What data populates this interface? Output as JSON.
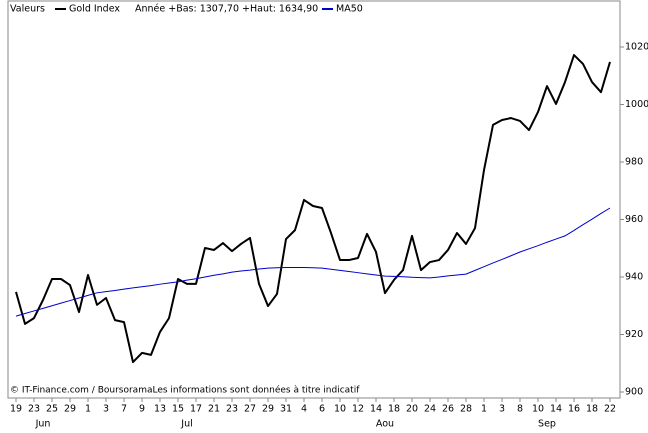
{
  "chart_data": {
    "type": "line",
    "legend_heading": "Valeurs",
    "subtitle": "Année +Bas: 1307,70 +Haut: 1634,90",
    "annotation": "© IT-Finance.com / BoursoramaLes informations sont données à titre indicatif",
    "categories": [
      "19",
      null,
      "23",
      null,
      "25",
      null,
      "29",
      null,
      "1",
      null,
      "3",
      null,
      "7",
      null,
      "9",
      null,
      "13",
      null,
      "15",
      null,
      "17",
      null,
      "21",
      null,
      "23",
      null,
      "27",
      null,
      "29",
      null,
      "31",
      null,
      "4",
      null,
      "6",
      null,
      "10",
      null,
      "12",
      null,
      "14",
      null,
      "18",
      null,
      "20",
      null,
      "24",
      null,
      "26",
      null,
      "28",
      null,
      "1",
      null,
      "3",
      null,
      "8",
      null,
      "10",
      null,
      "14",
      null,
      "16",
      null,
      "18",
      null,
      "22"
    ],
    "months": [
      "Jun",
      "Jul",
      "Aou",
      "Sep"
    ],
    "series": [
      {
        "name": "Gold Index",
        "color": "#000000",
        "width": 2,
        "values": [
          934.8,
          923.7,
          925.7,
          932.0,
          939.3,
          939.3,
          937.2,
          927.8,
          940.7,
          930.3,
          932.7,
          925.0,
          924.3,
          910.4,
          913.6,
          912.9,
          920.9,
          925.7,
          939.3,
          937.6,
          937.6,
          950.1,
          949.4,
          951.8,
          949.0,
          951.5,
          953.6,
          937.6,
          929.9,
          934.1,
          953.2,
          956.3,
          966.8,
          964.7,
          964.0,
          955.3,
          945.9,
          945.9,
          946.6,
          955.0,
          948.7,
          934.4,
          939.0,
          942.4,
          954.3,
          942.4,
          945.2,
          945.9,
          949.4,
          955.3,
          951.5,
          957.0,
          977.2,
          992.9,
          994.6,
          995.3,
          994.3,
          991.1,
          997.4,
          1006.4,
          1000.2,
          1007.8,
          1017.2,
          1014.1,
          1007.8,
          1004.3,
          1014.8
        ]
      },
      {
        "name": "MA50",
        "color": "#0000cc",
        "width": 1,
        "values": [
          926.4,
          927.3,
          928.2,
          929.1,
          930.0,
          930.9,
          931.8,
          932.7,
          933.6,
          934.5,
          934.9,
          935.3,
          935.8,
          936.2,
          936.6,
          937.0,
          937.5,
          937.9,
          938.3,
          938.9,
          939.4,
          940.0,
          940.6,
          941.1,
          941.7,
          942.1,
          942.4,
          942.8,
          943.1,
          943.2,
          943.3,
          943.3,
          943.3,
          943.2,
          943.1,
          942.7,
          942.3,
          941.9,
          941.5,
          941.1,
          940.7,
          940.3,
          940.2,
          940.1,
          939.9,
          939.8,
          939.7,
          940.0,
          940.4,
          940.7,
          941.0,
          942.3,
          943.6,
          944.9,
          946.1,
          947.4,
          948.7,
          949.8,
          950.9,
          952.1,
          953.2,
          954.3,
          956.2,
          958.2,
          960.1,
          962.1,
          964.0
        ]
      }
    ],
    "ylim": [
      898.26,
      1033.57
    ],
    "yticks": [
      900,
      920,
      940,
      960,
      980,
      1000,
      1020
    ]
  }
}
